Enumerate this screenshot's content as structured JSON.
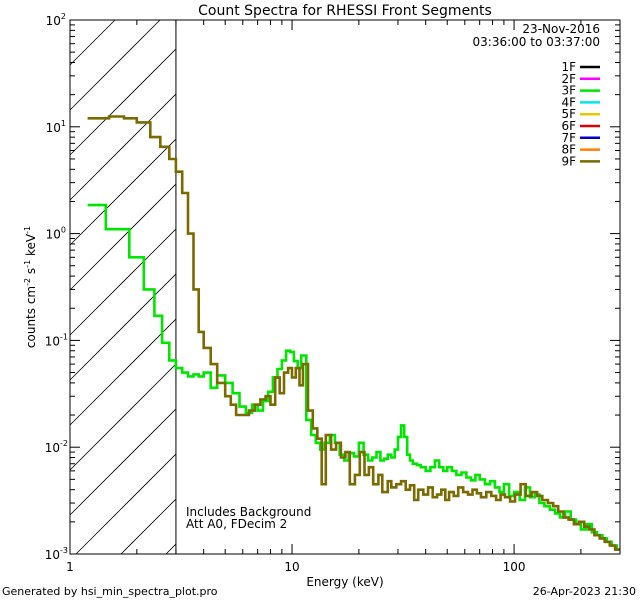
{
  "chart_data": {
    "type": "line",
    "title": "Count Spectra for RHESSI Front Segments",
    "xlabel": "Energy (keV)",
    "ylabel_parts": [
      "counts cm",
      "-2",
      " s",
      "-1",
      " keV",
      "-1"
    ],
    "xscale": "log",
    "yscale": "log",
    "xlim": [
      1,
      300
    ],
    "ylim": [
      0.001,
      100
    ],
    "x_ticks": [
      {
        "value": 1,
        "label": "1"
      },
      {
        "value": 10,
        "label": "10"
      },
      {
        "value": 100,
        "label": "100"
      }
    ],
    "y_ticks": [
      {
        "value": 0.001,
        "base": "10",
        "exp": "-3"
      },
      {
        "value": 0.01,
        "base": "10",
        "exp": "-2"
      },
      {
        "value": 0.1,
        "base": "10",
        "exp": "-1"
      },
      {
        "value": 1,
        "base": "10",
        "exp": "0"
      },
      {
        "value": 10,
        "base": "10",
        "exp": "1"
      },
      {
        "value": 100,
        "base": "10",
        "exp": "2"
      }
    ],
    "excluded_region": {
      "x_range": [
        1,
        3
      ]
    },
    "header": {
      "date": "23-Nov-2016",
      "time_range": "03:36:00 to 03:37:00"
    },
    "legend": [
      {
        "label": "1F",
        "color": "#000000"
      },
      {
        "label": "2F",
        "color": "#ff00ff"
      },
      {
        "label": "3F",
        "color": "#00e600"
      },
      {
        "label": "4F",
        "color": "#00e5ee"
      },
      {
        "label": "5F",
        "color": "#e6c800"
      },
      {
        "label": "6F",
        "color": "#dd0000"
      },
      {
        "label": "7F",
        "color": "#0000cc"
      },
      {
        "label": "8F",
        "color": "#ff8000"
      },
      {
        "label": "9F",
        "color": "#7a6a00"
      }
    ],
    "annotations": [
      "Includes Background",
      "Att A0, FDecim 2"
    ],
    "series": [
      {
        "name": "3F",
        "color": "#00e600",
        "x": [
          1.2,
          1.45,
          1.6,
          1.85,
          2.0,
          2.15,
          2.4,
          2.6,
          2.8,
          3.0,
          3.2,
          3.4,
          3.6,
          3.8,
          4.0,
          4.3,
          4.6,
          5.0,
          5.4,
          5.8,
          6.2,
          6.6,
          7.0,
          7.4,
          7.8,
          8.2,
          8.6,
          9.0,
          9.4,
          9.8,
          10.2,
          10.6,
          11.0,
          11.6,
          12.2,
          12.8,
          13.4,
          14.0,
          14.8,
          15.6,
          16.4,
          17.2,
          18.0,
          19.0,
          20.0,
          21.0,
          22.0,
          23.0,
          24.0,
          25.0,
          26.0,
          27.0,
          28.0,
          29.0,
          30.0,
          31.0,
          32.0,
          33.0,
          34.0,
          35.0,
          36.5,
          38.0,
          40.0,
          42.0,
          44.0,
          46.0,
          48.0,
          50.0,
          52.5,
          55.0,
          58.0,
          61.0,
          64.0,
          67.0,
          70.0,
          74.0,
          78.0,
          82.0,
          86.0,
          90.0,
          95.0,
          100.0,
          106.0,
          112.0,
          118.0,
          124.0,
          130.0,
          137.0,
          145.0,
          153.0,
          161.0,
          170.0,
          180.0,
          190.0,
          200.0,
          212.0,
          224.0,
          236.0,
          250.0,
          262.0,
          275.0,
          290.0,
          300.0
        ],
        "y": [
          1.85,
          1.1,
          1.1,
          0.6,
          0.6,
          0.3,
          0.17,
          0.095,
          0.065,
          0.055,
          0.05,
          0.046,
          0.048,
          0.046,
          0.05,
          0.036,
          0.047,
          0.04,
          0.032,
          0.024,
          0.021,
          0.025,
          0.022,
          0.027,
          0.033,
          0.045,
          0.054,
          0.065,
          0.08,
          0.078,
          0.064,
          0.055,
          0.072,
          0.018,
          0.013,
          0.011,
          0.0095,
          0.011,
          0.013,
          0.011,
          0.0085,
          0.0075,
          0.0088,
          0.0082,
          0.011,
          0.0085,
          0.0075,
          0.008,
          0.009,
          0.0075,
          0.0078,
          0.0085,
          0.008,
          0.0095,
          0.0125,
          0.016,
          0.0125,
          0.0085,
          0.0075,
          0.007,
          0.0068,
          0.0065,
          0.006,
          0.0065,
          0.0075,
          0.0065,
          0.006,
          0.0065,
          0.006,
          0.0055,
          0.0058,
          0.0052,
          0.0049,
          0.0055,
          0.005,
          0.0045,
          0.0048,
          0.0042,
          0.0038,
          0.0045,
          0.0035,
          0.0038,
          0.0032,
          0.0042,
          0.0034,
          0.0036,
          0.003,
          0.0028,
          0.0026,
          0.0024,
          0.0022,
          0.0025,
          0.0021,
          0.0019,
          0.0017,
          0.0019,
          0.0016,
          0.0015,
          0.0014,
          0.0013,
          0.0012,
          0.0011,
          0.0011
        ]
      },
      {
        "name": "9F",
        "color": "#7a6a00",
        "x": [
          1.2,
          1.5,
          1.75,
          2.0,
          2.3,
          2.55,
          2.8,
          3.0,
          3.2,
          3.4,
          3.6,
          3.8,
          4.0,
          4.3,
          4.6,
          5.0,
          5.3,
          5.6,
          6.0,
          6.4,
          6.8,
          7.2,
          7.6,
          8.0,
          8.4,
          8.8,
          9.2,
          9.6,
          10.0,
          10.4,
          10.8,
          11.2,
          11.8,
          12.4,
          13.0,
          13.6,
          14.2,
          15.0,
          15.8,
          16.6,
          17.4,
          18.2,
          19.2,
          20.2,
          21.2,
          22.2,
          23.2,
          24.5,
          25.5,
          27.0,
          28.0,
          29.5,
          31.0,
          32.5,
          34.0,
          35.5,
          37.0,
          39.0,
          41.0,
          43.0,
          45.0,
          47.0,
          49.0,
          51.0,
          53.5,
          56.0,
          59.0,
          62.0,
          65.0,
          68.0,
          71.0,
          75.0,
          79.0,
          83.0,
          87.0,
          91.0,
          96.0,
          101.0,
          107.0,
          113.0,
          120.0,
          127.0,
          134.0,
          142.0,
          150.0,
          158.0,
          167.0,
          176.0,
          186.0,
          196.0,
          207.0,
          218.0,
          230.0,
          243.0,
          256.0,
          270.0,
          285.0,
          300.0
        ],
        "y": [
          12.0,
          12.5,
          12.0,
          11.0,
          8.0,
          6.5,
          5.0,
          3.8,
          2.4,
          1.0,
          0.3,
          0.12,
          0.085,
          0.06,
          0.04,
          0.03,
          0.025,
          0.02,
          0.02,
          0.022,
          0.025,
          0.028,
          0.03,
          0.025,
          0.045,
          0.032,
          0.05,
          0.055,
          0.045,
          0.055,
          0.038,
          0.06,
          0.022,
          0.015,
          0.012,
          0.0045,
          0.013,
          0.0095,
          0.011,
          0.008,
          0.009,
          0.0045,
          0.0055,
          0.009,
          0.0055,
          0.0065,
          0.0045,
          0.0055,
          0.0038,
          0.0048,
          0.0042,
          0.0045,
          0.0048,
          0.004,
          0.0044,
          0.0032,
          0.004,
          0.0036,
          0.0042,
          0.0034,
          0.0036,
          0.004,
          0.0032,
          0.0038,
          0.0035,
          0.0042,
          0.0038,
          0.0036,
          0.004,
          0.0037,
          0.0034,
          0.0038,
          0.0035,
          0.0032,
          0.0036,
          0.0034,
          0.0031,
          0.0036,
          0.0045,
          0.0035,
          0.0038,
          0.0035,
          0.0032,
          0.003,
          0.0028,
          0.0025,
          0.0022,
          0.0021,
          0.0019,
          0.002,
          0.0018,
          0.0017,
          0.0015,
          0.0014,
          0.0013,
          0.0012,
          0.0011,
          0.0011
        ]
      }
    ]
  },
  "footer": {
    "left": "Generated by hsi_min_spectra_plot.pro",
    "right": "26-Apr-2023 21:30"
  }
}
